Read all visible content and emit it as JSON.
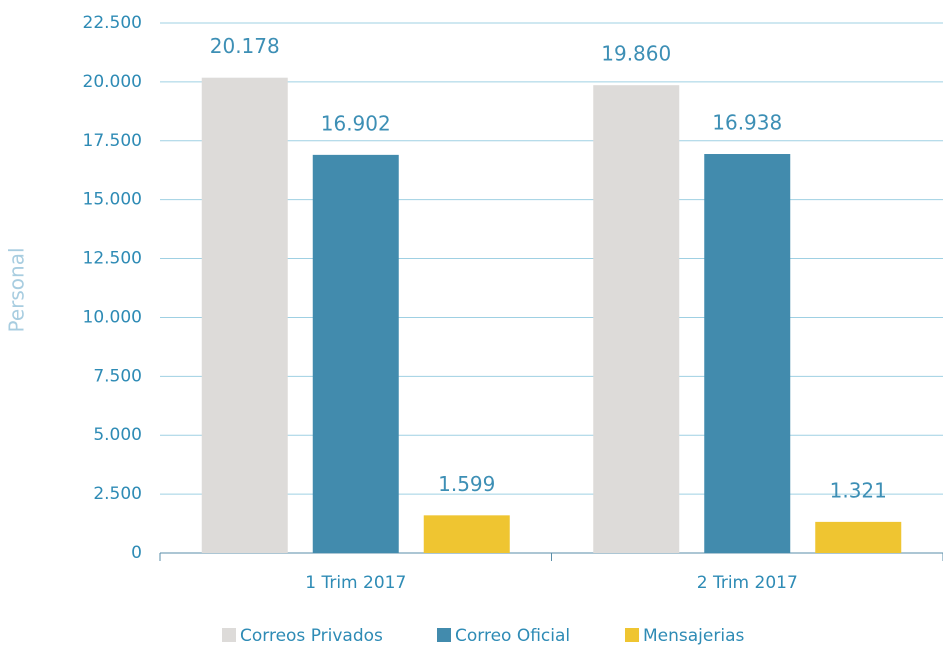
{
  "chart_data": {
    "type": "bar",
    "y_label": "Personal",
    "categories": [
      "1 Trim 2017",
      "2 Trim 2017"
    ],
    "series": [
      {
        "name": "Correos Privados",
        "color": "#dddbd9",
        "values": [
          20178,
          19860
        ],
        "value_labels": [
          "20.178",
          "19.860"
        ]
      },
      {
        "name": "Correo Oficial",
        "color": "#428bad",
        "values": [
          16902,
          16938
        ],
        "value_labels": [
          "16.902",
          "16.938"
        ]
      },
      {
        "name": "Mensajerias",
        "color": "#efc531",
        "values": [
          1599,
          1321
        ],
        "value_labels": [
          "1.599",
          "1.321"
        ]
      }
    ],
    "ylim": [
      0,
      22500
    ],
    "yticks": [
      0,
      {
        "value": 2500,
        "label": "2.500"
      },
      {
        "value": 5000,
        "label": "5.000"
      },
      {
        "value": 7500,
        "label": "7.500"
      },
      {
        "value": 10000,
        "label": "10.000"
      },
      {
        "value": 12500,
        "label": "12.500"
      },
      {
        "value": 15000,
        "label": "15.000"
      },
      {
        "value": 17500,
        "label": "17.500"
      },
      {
        "value": 20000,
        "label": "20.000"
      },
      {
        "value": 22500,
        "label": "22.500"
      }
    ],
    "grid": true,
    "legend": "bottom"
  }
}
